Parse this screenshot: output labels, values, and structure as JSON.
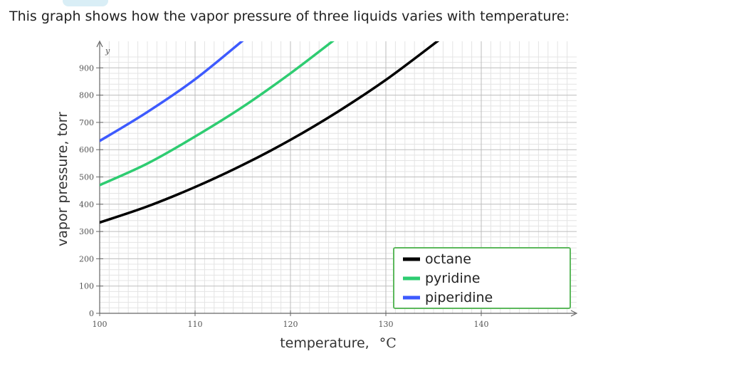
{
  "intro_text": "This graph shows how the vapor pressure of three liquids varies with temperature:",
  "chart_data": {
    "type": "line",
    "title": "",
    "xlabel": "temperature,",
    "xunit": "°C",
    "ylabel": "vapor pressure, torr",
    "y_axis_variable": "y",
    "xlim": [
      100,
      150
    ],
    "ylim": [
      0,
      950
    ],
    "x_ticks": [
      100,
      110,
      120,
      130,
      140
    ],
    "y_ticks": [
      0,
      100,
      200,
      300,
      400,
      500,
      600,
      700,
      800,
      900
    ],
    "grid": true,
    "legend_position": "bottom-right",
    "series": [
      {
        "name": "octane",
        "color": "#000000",
        "x": [
          100,
          105,
          110,
          115,
          120,
          125,
          130,
          135.5
        ],
        "y": [
          333,
          392,
          463,
          544,
          636,
          740,
          856,
          1000
        ]
      },
      {
        "name": "pyridine",
        "color": "#2ecc71",
        "x": [
          100,
          105,
          110,
          115,
          120,
          124.5
        ],
        "y": [
          470,
          549,
          648,
          757,
          880,
          1000
        ]
      },
      {
        "name": "piperidine",
        "color": "#3d5afe",
        "x": [
          100,
          105,
          110,
          115
        ],
        "y": [
          632,
          738,
          858,
          1000
        ]
      }
    ]
  }
}
